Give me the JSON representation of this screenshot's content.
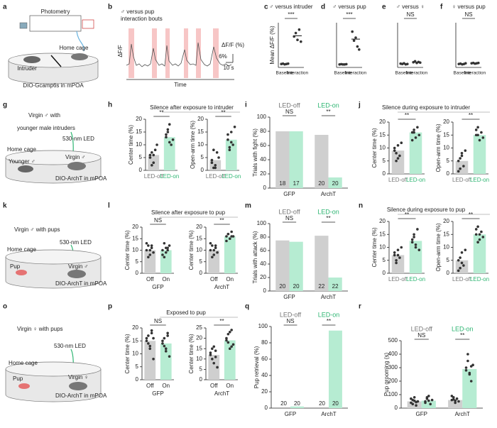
{
  "labels": {
    "a": {
      "letter": "a",
      "photometry": "Photometry",
      "home_cage": "Home cage",
      "intruder": "Intruder",
      "virus": "DIO-Gcamp6s in mPOA"
    },
    "b": {
      "letter": "b",
      "title": "♂ versus pup",
      "subtitle": "interaction bouts",
      "ylabel": "ΔF/F",
      "xlabel": "Time",
      "scale_label": "ΔF/F (%)",
      "scale_y": "6%",
      "scale_x": "10 s"
    },
    "c": {
      "letter": "c"
    },
    "d": {
      "letter": "d"
    },
    "e": {
      "letter": "e"
    },
    "f": {
      "letter": "f"
    },
    "g": {
      "letter": "g",
      "line1": "Virgin ♂ with",
      "line2": "younger male intruders",
      "led": "530-nm LED",
      "home_cage": "Home cage",
      "younger": "Younger ♂",
      "virgin": "Virgin ♂",
      "virus": "DIO-ArchT in mPOA"
    },
    "h": {
      "letter": "h",
      "title": "Silence after exposure to intruder"
    },
    "i": {
      "letter": "i"
    },
    "j": {
      "letter": "j",
      "title": "Silence during exposure to intruder"
    },
    "k": {
      "letter": "k",
      "line1": "Virgin ♂ with pups",
      "led": "530-nm LED",
      "home_cage": "Home cage",
      "pup": "Pup",
      "virgin": "Virgin ♂",
      "virus": "DIO-ArchT in mPOA"
    },
    "l": {
      "letter": "l",
      "title": "Silence after exposure to pup"
    },
    "m": {
      "letter": "m"
    },
    "n": {
      "letter": "n",
      "title": "Silence during exposure to pup"
    },
    "o": {
      "letter": "o",
      "line1": "Virgin ♀ with pups",
      "led": "530-nm LED",
      "home_cage": "Home cage",
      "pup": "Pup",
      "virgin": "Virgin ♀",
      "virus": "DIO-ArchT in mPOA"
    },
    "p": {
      "letter": "p",
      "title": "Exposed to pup"
    },
    "q": {
      "letter": "q"
    },
    "r": {
      "letter": "r"
    }
  },
  "chart_data": [
    {
      "type": "dot",
      "title": "♂ versus intruder",
      "ylabel": "Mean ΔF/F (%)",
      "categories": [
        "Baseline",
        "Interaction"
      ],
      "ylim": [
        -1,
        12
      ],
      "values": [
        0,
        8.2
      ],
      "points": [
        [
          0,
          0.1,
          -0.1,
          0,
          0.1
        ],
        [
          8,
          9,
          7,
          10,
          6.5
        ]
      ],
      "significance": "***"
    },
    {
      "type": "dot",
      "title": "♂ versus pup",
      "categories": [
        "Baseline",
        "Interaction"
      ],
      "ylim": [
        -1,
        14
      ],
      "values": [
        0,
        8.5
      ],
      "points": [
        [
          0,
          0.1,
          0,
          0,
          0.1
        ],
        [
          11,
          8,
          9,
          6,
          5
        ]
      ],
      "significance": "***"
    },
    {
      "type": "dot",
      "title": "♂ versus ♀",
      "categories": [
        "Baseline",
        "Interaction"
      ],
      "ylim": [
        -1,
        12
      ],
      "values": [
        0,
        0.5
      ],
      "points": [
        [
          0.1,
          0,
          0.2,
          -0.1,
          0
        ],
        [
          0.5,
          0.8,
          0.3,
          0.6,
          0.4
        ]
      ],
      "significance": "NS"
    },
    {
      "type": "dot",
      "title": "♀ versus pup",
      "categories": [
        "Baseline",
        "Interaction"
      ],
      "ylim": [
        -1,
        12
      ],
      "values": [
        0,
        0.2
      ],
      "points": [
        [
          0,
          0.1,
          -0.1,
          0,
          0.2
        ],
        [
          0.2,
          0.3,
          0.1,
          0.2,
          0.3
        ]
      ],
      "significance": "NS"
    },
    {
      "type": "bar",
      "ylabel": "Center time (%)",
      "categories": [
        "LED-off",
        "LED-on"
      ],
      "colors": [
        "#cfcfcf",
        "#b6ecd2"
      ],
      "label_colors": [
        "#777777",
        "#2fb673"
      ],
      "ylim": [
        0,
        20
      ],
      "yticks": [
        0,
        5,
        10,
        15,
        20
      ],
      "values": [
        6,
        13
      ],
      "points": [
        [
          6,
          2,
          3,
          8,
          10,
          5,
          7,
          6
        ],
        [
          13,
          15,
          18,
          10,
          12,
          14,
          16,
          11
        ]
      ],
      "significance": "**"
    },
    {
      "type": "bar",
      "ylabel": "Open-arm time (%)",
      "categories": [
        "LED-off",
        "LED-on"
      ],
      "colors": [
        "#cfcfcf",
        "#b6ecd2"
      ],
      "label_colors": [
        "#777777",
        "#2fb673"
      ],
      "ylim": [
        0,
        20
      ],
      "yticks": [
        0,
        5,
        10,
        15,
        20
      ],
      "values": [
        4,
        12
      ],
      "points": [
        [
          4,
          1,
          2,
          7,
          5,
          3,
          8,
          1
        ],
        [
          12,
          8,
          15,
          10,
          17,
          14,
          9,
          11
        ]
      ],
      "significance": "**"
    },
    {
      "type": "grouped",
      "ylabel": "Trials with fight (%)",
      "categories": [
        "GFP",
        "ArchT"
      ],
      "ylim": [
        0,
        100
      ],
      "yticks": [
        0,
        20,
        40,
        60,
        80,
        100
      ],
      "series": [
        {
          "name": "LED-off",
          "color": "#cfcfcf",
          "label_color": "#777777",
          "values": [
            80,
            75
          ],
          "n": [
            18,
            20
          ]
        },
        {
          "name": "LED-on",
          "color": "#b6ecd2",
          "label_color": "#2fb673",
          "values": [
            80,
            15
          ],
          "n": [
            17,
            20
          ]
        }
      ],
      "significance": [
        "NS",
        "**"
      ]
    },
    {
      "type": "bar",
      "ylabel": "Center time (%)",
      "categories": [
        "LED-off",
        "LED-on"
      ],
      "colors": [
        "#cfcfcf",
        "#b6ecd2"
      ],
      "label_colors": [
        "#777777",
        "#2fb673"
      ],
      "ylim": [
        0,
        20
      ],
      "yticks": [
        0,
        5,
        10,
        15,
        20
      ],
      "values": [
        9,
        16
      ],
      "points": [
        [
          9,
          5,
          11,
          7,
          12,
          10,
          8,
          6
        ],
        [
          16,
          17,
          14,
          18,
          15,
          13,
          16
        ]
      ],
      "significance": "**"
    },
    {
      "type": "bar",
      "ylabel": "Open-arm time (%)",
      "categories": [
        "LED-off",
        "LED-on"
      ],
      "colors": [
        "#cfcfcf",
        "#b6ecd2"
      ],
      "label_colors": [
        "#777777",
        "#2fb673"
      ],
      "ylim": [
        0,
        20
      ],
      "yticks": [
        0,
        5,
        10,
        15,
        20
      ],
      "values": [
        5,
        15
      ],
      "points": [
        [
          5,
          2,
          8,
          3,
          9,
          1,
          6,
          7
        ],
        [
          15,
          18,
          13,
          16,
          14,
          17,
          15
        ]
      ],
      "significance": "**"
    },
    {
      "type": "bar",
      "ylabel": "Center time (%)",
      "group": "GFP",
      "categories": [
        "Off",
        "On"
      ],
      "colors": [
        "#cfcfcf",
        "#b6ecd2"
      ],
      "ylim": [
        0,
        20
      ],
      "yticks": [
        0,
        5,
        10,
        15,
        20
      ],
      "values": [
        10,
        10
      ],
      "points": [
        [
          10,
          12,
          8,
          11,
          9,
          13,
          7,
          10,
          12
        ],
        [
          10,
          13,
          9,
          11,
          12,
          8,
          7,
          11,
          10
        ]
      ],
      "significance": "NS"
    },
    {
      "type": "bar",
      "ylabel": "Center time (%)",
      "group": "ArchT",
      "categories": [
        "Off",
        "On"
      ],
      "colors": [
        "#cfcfcf",
        "#b6ecd2"
      ],
      "ylim": [
        0,
        20
      ],
      "yticks": [
        0,
        5,
        10,
        15,
        20
      ],
      "values": [
        10,
        16
      ],
      "points": [
        [
          10,
          12,
          8,
          11,
          9,
          13,
          7,
          10,
          12
        ],
        [
          16,
          17,
          15,
          18,
          16,
          14,
          17,
          15,
          16
        ]
      ],
      "significance": "**"
    },
    {
      "type": "grouped",
      "ylabel": "Trials with attack (%)",
      "categories": [
        "GFP",
        "ArchT"
      ],
      "ylim": [
        0,
        100
      ],
      "yticks": [
        0,
        20,
        40,
        60,
        80,
        100
      ],
      "series": [
        {
          "name": "LED-off",
          "color": "#cfcfcf",
          "label_color": "#777777",
          "values": [
            75,
            82
          ],
          "n": [
            20,
            22
          ]
        },
        {
          "name": "LED-on",
          "color": "#b6ecd2",
          "label_color": "#2fb673",
          "values": [
            73,
            20
          ],
          "n": [
            20,
            22
          ]
        }
      ],
      "significance": [
        "NS",
        "**"
      ]
    },
    {
      "type": "bar",
      "ylabel": "Center time (%)",
      "categories": [
        "LED-off",
        "LED-on"
      ],
      "colors": [
        "#cfcfcf",
        "#b6ecd2"
      ],
      "label_colors": [
        "#777777",
        "#2fb673"
      ],
      "ylim": [
        0,
        20
      ],
      "yticks": [
        0,
        5,
        10,
        15,
        20
      ],
      "values": [
        7,
        12.5
      ],
      "points": [
        [
          7,
          5,
          9,
          6,
          10,
          8,
          4,
          7
        ],
        [
          12,
          15,
          10,
          17,
          9,
          13,
          14,
          11
        ]
      ],
      "significance": "**"
    },
    {
      "type": "bar",
      "ylabel": "Open-arm time (%)",
      "categories": [
        "LED-off",
        "LED-on"
      ],
      "colors": [
        "#cfcfcf",
        "#b6ecd2"
      ],
      "label_colors": [
        "#777777",
        "#2fb673"
      ],
      "ylim": [
        0,
        20
      ],
      "yticks": [
        0,
        5,
        10,
        15,
        20
      ],
      "values": [
        5,
        15
      ],
      "points": [
        [
          5,
          2,
          8,
          3,
          9,
          1,
          6,
          4
        ],
        [
          15,
          18,
          13,
          16,
          14,
          17,
          12,
          15
        ]
      ],
      "significance": "**"
    },
    {
      "type": "bar",
      "ylabel": "Center time (%)",
      "group": "GFP",
      "categories": [
        "Off",
        "On"
      ],
      "colors": [
        "#cfcfcf",
        "#b6ecd2"
      ],
      "ylim": [
        0,
        20
      ],
      "yticks": [
        0,
        5,
        10,
        15,
        20
      ],
      "values": [
        15,
        14
      ],
      "points": [
        [
          15,
          17,
          12,
          18,
          8,
          16,
          14,
          13,
          19,
          16
        ],
        [
          14,
          16,
          11,
          17,
          9,
          15,
          13,
          12,
          18
        ]
      ],
      "significance": "NS"
    },
    {
      "type": "bar",
      "ylabel": "Center time (%)",
      "group": "ArchT",
      "categories": [
        "Off",
        "On"
      ],
      "colors": [
        "#cfcfcf",
        "#b6ecd2"
      ],
      "ylim": [
        0,
        25
      ],
      "yticks": [
        0,
        5,
        10,
        15,
        20,
        25
      ],
      "values": [
        12,
        19
      ],
      "points": [
        [
          12,
          15,
          8,
          14,
          6,
          13,
          10,
          16,
          11
        ],
        [
          19,
          22,
          15,
          24,
          17,
          20,
          18,
          23,
          16
        ]
      ],
      "significance": "**"
    },
    {
      "type": "grouped",
      "ylabel": "Pup retrieval (%)",
      "categories": [
        "GFP",
        "ArchT"
      ],
      "ylim": [
        0,
        100
      ],
      "yticks": [
        0,
        20,
        40,
        60,
        80,
        100
      ],
      "series": [
        {
          "name": "LED-off",
          "color": "#cfcfcf",
          "label_color": "#777777",
          "values": [
            0,
            0
          ],
          "n": [
            20,
            20
          ]
        },
        {
          "name": "LED-on",
          "color": "#b6ecd2",
          "label_color": "#2fb673",
          "values": [
            2,
            95
          ],
          "n": [
            20,
            20
          ]
        }
      ],
      "significance": [
        "NS",
        "**"
      ]
    },
    {
      "type": "grouped",
      "ylabel": "Pup grooming (s)",
      "categories": [
        "GFP",
        "ArchT"
      ],
      "ylim": [
        0,
        500
      ],
      "yticks": [
        0,
        100,
        200,
        300,
        400,
        500
      ],
      "series": [
        {
          "name": "LED-off",
          "color": "#cfcfcf",
          "label_color": "#777777",
          "values": [
            50,
            60
          ],
          "points": [
            [
              40,
              60,
              80,
              20,
              50,
              70,
              30,
              55,
              45
            ],
            [
              60,
              80,
              40,
              70,
              50,
              90,
              65,
              55
            ]
          ]
        },
        {
          "name": "LED-on",
          "color": "#b6ecd2",
          "label_color": "#2fb673",
          "values": [
            55,
            290
          ],
          "points": [
            [
              50,
              70,
              90,
              30,
              60,
              40,
              80,
              55
            ],
            [
              300,
              350,
              250,
              200,
              320,
              280,
              400,
              260,
              310
            ]
          ]
        }
      ],
      "significance": [
        "NS",
        "**"
      ]
    }
  ]
}
